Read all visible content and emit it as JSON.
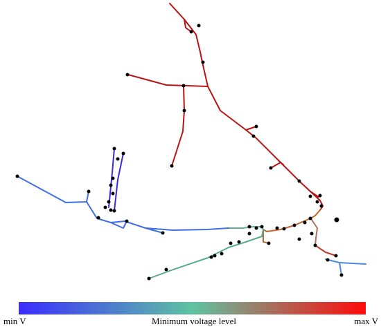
{
  "colorbar": {
    "min_label": "min V",
    "title": "Minimum voltage level",
    "max_label": "max V"
  }
}
